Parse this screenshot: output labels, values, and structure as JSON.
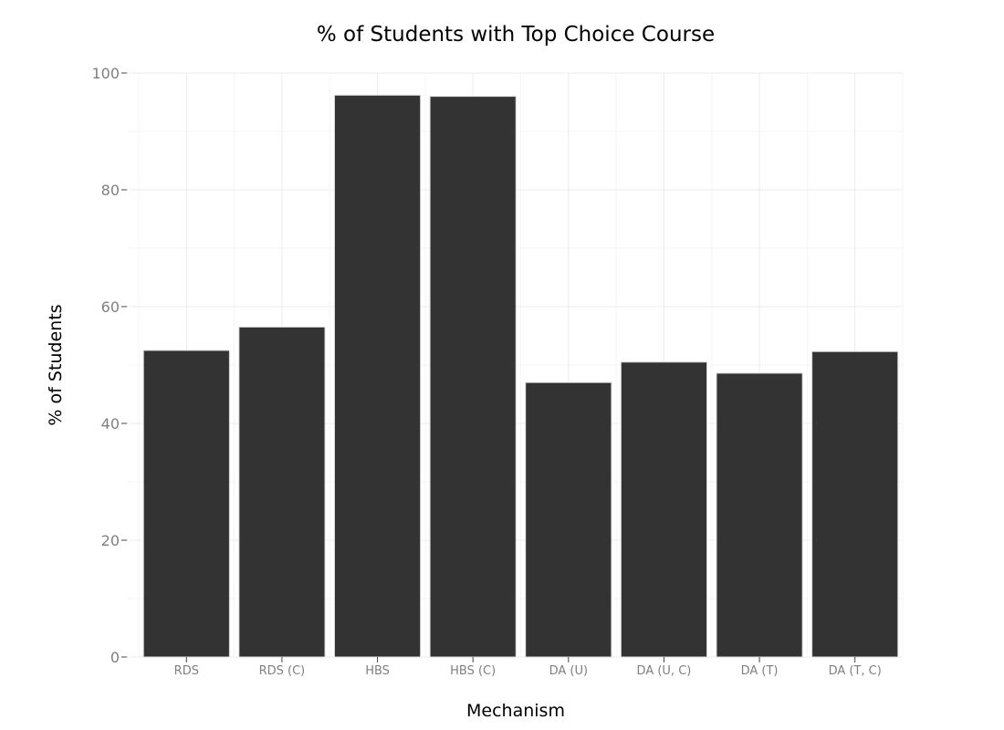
{
  "chart_data": {
    "type": "bar",
    "title": "% of Students with Top Choice Course",
    "xlabel": "Mechanism",
    "ylabel": "% of Students",
    "categories": [
      "RDS",
      "RDS (C)",
      "HBS",
      "HBS (C)",
      "DA (U)",
      "DA (U, C)",
      "DA (T)",
      "DA (T, C)"
    ],
    "values": [
      52.5,
      56.5,
      96.2,
      96.0,
      47.0,
      50.5,
      48.6,
      52.3
    ],
    "ylim": [
      0,
      100
    ],
    "yticks": [
      0,
      20,
      40,
      60,
      80,
      100
    ],
    "grid": true,
    "legend": "none",
    "colors": {
      "bar_fill": "#333333",
      "bar_edge": "#d9d9d9"
    }
  }
}
